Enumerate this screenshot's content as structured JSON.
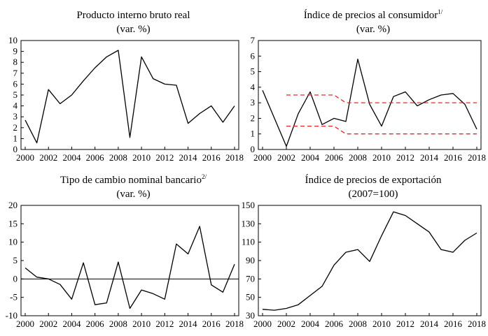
{
  "chart_data": [
    {
      "type": "line",
      "title": "Producto interno bruto real",
      "subtitle": "(var. %)",
      "title_sup": "",
      "x": [
        2000,
        2001,
        2002,
        2003,
        2004,
        2005,
        2006,
        2007,
        2008,
        2009,
        2010,
        2011,
        2012,
        2013,
        2014,
        2015,
        2016,
        2017,
        2018
      ],
      "series": [
        {
          "values": [
            2.7,
            0.6,
            5.5,
            4.2,
            5.0,
            6.3,
            7.5,
            8.5,
            9.1,
            1.1,
            8.5,
            6.5,
            6.0,
            5.9,
            2.4,
            3.3,
            4.0,
            2.5,
            4.0
          ],
          "color": "#000000",
          "dash": "none"
        }
      ],
      "xlim": [
        2000,
        2018
      ],
      "ylim": [
        0,
        10
      ],
      "yticks": [
        0,
        1,
        2,
        3,
        4,
        5,
        6,
        7,
        8,
        9,
        10
      ],
      "xticks": [
        2000,
        2002,
        2004,
        2006,
        2008,
        2010,
        2012,
        2014,
        2016,
        2018
      ],
      "zero_line": false,
      "xlabel": "",
      "ylabel": ""
    },
    {
      "type": "line",
      "title": "Índice de precios al consumidor",
      "subtitle": "(var. %)",
      "title_sup": "1/",
      "x": [
        2000,
        2001,
        2002,
        2003,
        2004,
        2005,
        2006,
        2007,
        2008,
        2009,
        2010,
        2011,
        2012,
        2013,
        2014,
        2015,
        2016,
        2017,
        2018
      ],
      "series": [
        {
          "values": [
            3.8,
            2.0,
            0.2,
            2.3,
            3.7,
            1.6,
            2.0,
            1.8,
            5.8,
            2.9,
            1.5,
            3.4,
            3.7,
            2.8,
            3.2,
            3.5,
            3.6,
            2.9,
            1.3
          ],
          "color": "#000000",
          "dash": "none"
        },
        {
          "x": [
            2002,
            2003,
            2004,
            2005,
            2006,
            2007,
            2008,
            2009,
            2010,
            2011,
            2012,
            2013,
            2014,
            2015,
            2016,
            2017,
            2018
          ],
          "values": [
            3.5,
            3.5,
            3.5,
            3.5,
            3.5,
            3.0,
            3.0,
            3.0,
            3.0,
            3.0,
            3.0,
            3.0,
            3.0,
            3.0,
            3.0,
            3.0,
            3.0
          ],
          "color": "#e8262a",
          "dash": "6,4"
        },
        {
          "x": [
            2002,
            2003,
            2004,
            2005,
            2006,
            2007,
            2008,
            2009,
            2010,
            2011,
            2012,
            2013,
            2014,
            2015,
            2016,
            2017,
            2018
          ],
          "values": [
            1.5,
            1.5,
            1.5,
            1.5,
            1.5,
            1.0,
            1.0,
            1.0,
            1.0,
            1.0,
            1.0,
            1.0,
            1.0,
            1.0,
            1.0,
            1.0,
            1.0
          ],
          "color": "#e8262a",
          "dash": "6,4"
        }
      ],
      "xlim": [
        2000,
        2018
      ],
      "ylim": [
        0,
        7
      ],
      "yticks": [
        0,
        1,
        2,
        3,
        4,
        5,
        6,
        7
      ],
      "xticks": [
        2000,
        2002,
        2004,
        2006,
        2008,
        2010,
        2012,
        2014,
        2016,
        2018
      ],
      "zero_line": false,
      "xlabel": "",
      "ylabel": ""
    },
    {
      "type": "line",
      "title": "Tipo de cambio nominal bancario",
      "subtitle": "(var. %)",
      "title_sup": "2/",
      "x": [
        2000,
        2001,
        2002,
        2003,
        2004,
        2005,
        2006,
        2007,
        2008,
        2009,
        2010,
        2011,
        2012,
        2013,
        2014,
        2015,
        2016,
        2017,
        2018
      ],
      "series": [
        {
          "values": [
            3.0,
            0.5,
            0.0,
            -1.5,
            -5.5,
            4.4,
            -7.0,
            -6.5,
            4.6,
            -8.0,
            -3.0,
            -4.0,
            -5.5,
            9.5,
            6.8,
            14.3,
            -1.6,
            -3.6,
            4.0
          ],
          "color": "#000000",
          "dash": "none"
        }
      ],
      "xlim": [
        2000,
        2018
      ],
      "ylim": [
        -10,
        20
      ],
      "yticks": [
        -10,
        -5,
        0,
        5,
        10,
        15,
        20
      ],
      "xticks": [
        2000,
        2002,
        2004,
        2006,
        2008,
        2010,
        2012,
        2014,
        2016,
        2018
      ],
      "zero_line": true,
      "xlabel": "",
      "ylabel": ""
    },
    {
      "type": "line",
      "title": "Índice de precios de exportación",
      "subtitle": "(2007=100)",
      "title_sup": "",
      "x": [
        2000,
        2001,
        2002,
        2003,
        2004,
        2005,
        2006,
        2007,
        2008,
        2009,
        2010,
        2011,
        2012,
        2013,
        2014,
        2015,
        2016,
        2017,
        2018
      ],
      "series": [
        {
          "values": [
            37,
            36,
            38,
            42,
            52,
            62,
            85,
            99,
            102,
            89,
            117,
            143,
            139,
            130,
            121,
            102,
            99,
            112,
            120
          ],
          "color": "#000000",
          "dash": "none"
        }
      ],
      "xlim": [
        2000,
        2018
      ],
      "ylim": [
        30,
        150
      ],
      "yticks": [
        30,
        50,
        70,
        90,
        110,
        130,
        150
      ],
      "xticks": [
        2000,
        2002,
        2004,
        2006,
        2008,
        2010,
        2012,
        2014,
        2016,
        2018
      ],
      "zero_line": false,
      "xlabel": "",
      "ylabel": ""
    }
  ]
}
